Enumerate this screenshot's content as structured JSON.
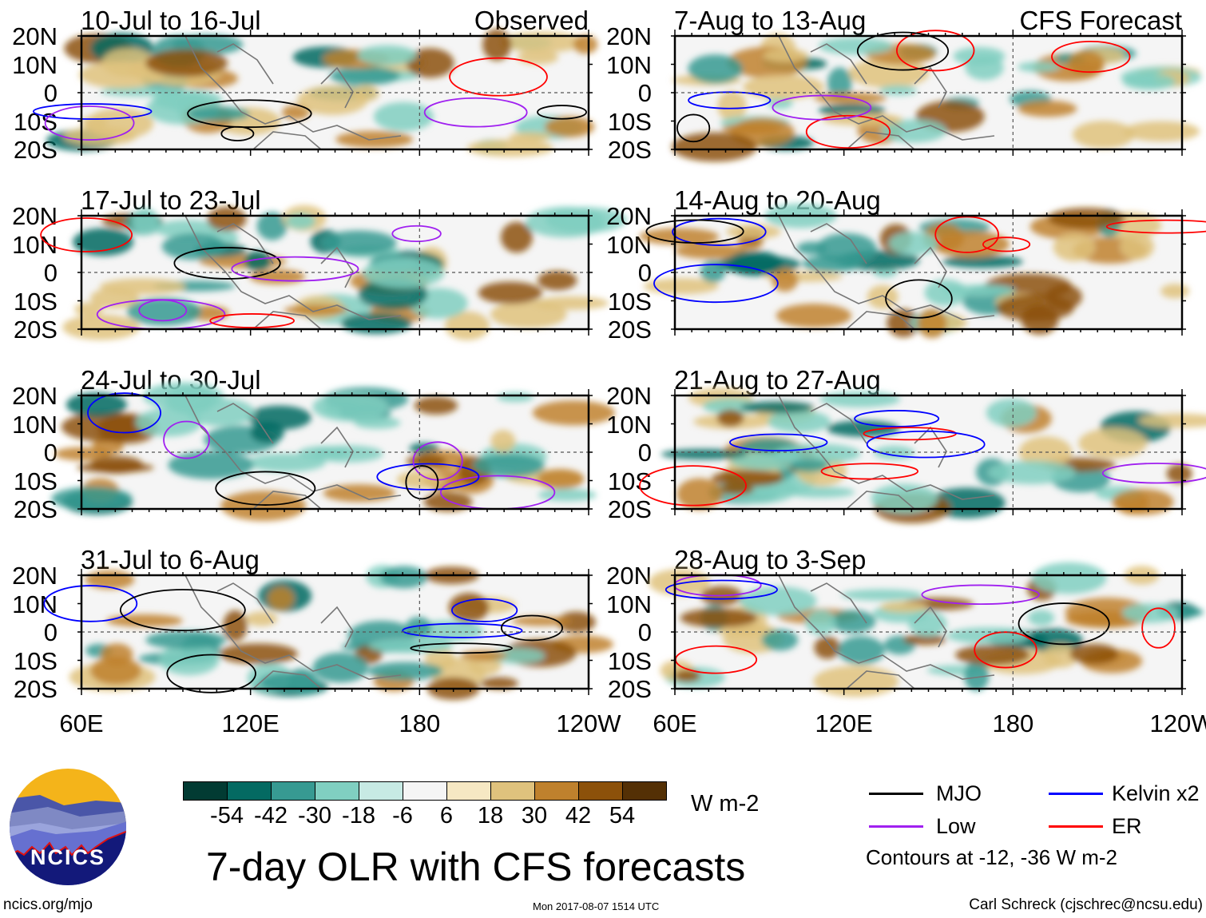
{
  "figure": {
    "title": "7-day OLR with CFS forecasts",
    "column_labels": {
      "left": "Observed",
      "right": "CFS Forecast"
    },
    "lat_labels": [
      "20N",
      "10N",
      "0",
      "10S",
      "20S"
    ],
    "lon_labels": [
      "60E",
      "120E",
      "180",
      "120W"
    ],
    "panels_left": [
      {
        "title": "10-Jul to 16-Jul"
      },
      {
        "title": "17-Jul to 23-Jul"
      },
      {
        "title": "24-Jul to 30-Jul"
      },
      {
        "title": "31-Jul to 6-Aug"
      }
    ],
    "panels_right": [
      {
        "title": "7-Aug to 13-Aug"
      },
      {
        "title": "14-Aug to 20-Aug"
      },
      {
        "title": "21-Aug to 27-Aug"
      },
      {
        "title": "28-Aug to 3-Sep"
      }
    ]
  },
  "colorbar": {
    "unit": "W m-2",
    "labels": [
      "-54",
      "-42",
      "-30",
      "-18",
      "-6",
      "6",
      "18",
      "30",
      "42",
      "54"
    ],
    "colors": [
      "#023b33",
      "#046a62",
      "#379a92",
      "#80cfc1",
      "#c7eae4",
      "#f5f5f5",
      "#f6e8c3",
      "#dfc27d",
      "#bf812d",
      "#8c510a",
      "#543005"
    ]
  },
  "legend": {
    "items": [
      {
        "label": "MJO",
        "color": "#000000"
      },
      {
        "label": "Kelvin x2",
        "color": "#0000ff"
      },
      {
        "label": "Low",
        "color": "#a020f0"
      },
      {
        "label": "ER",
        "color": "#ff0000"
      }
    ],
    "note": "Contours at -12, -36 W m-2"
  },
  "logo": {
    "text": "NCICS"
  },
  "footer": {
    "url": "ncics.org/mjo",
    "timestamp": "Mon 2017-08-07 1514 UTC",
    "credit": "Carl Schreck (cjschrec@ncsu.edu)"
  }
}
